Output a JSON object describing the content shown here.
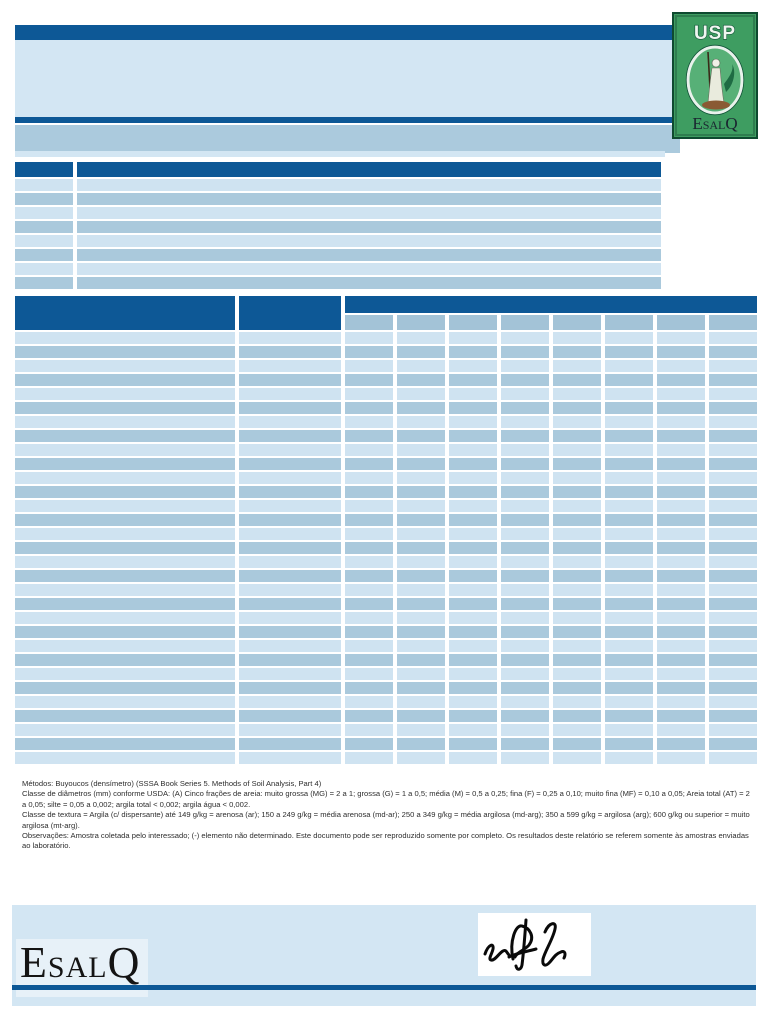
{
  "colors": {
    "dark_blue": "#0D5896",
    "light_blue": "#D3E6F3",
    "row_light": "#CFE3F1",
    "row_medium": "#AAC9DC",
    "subheader_blue": "#A3C3D7",
    "logo_green": "#3E9D61",
    "logo_border_green": "#0E4A30"
  },
  "logo": {
    "org": "USP"
  },
  "wordmark": {
    "first": "E",
    "middle": "SAL",
    "last": "Q"
  },
  "info_table": {
    "row_count": 8,
    "column_count": 2
  },
  "main_table": {
    "row_count": 31,
    "subcolumn_count": 8
  },
  "notes": {
    "methods": "Métodos: Buyoucos (densímetro) (SSSA Book Series 5. Methods of Soil Analysis, Part 4)",
    "diameters": "Classe de diâmetros (mm) conforme USDA: (A) Cinco frações de areia: muito grossa (MG) = 2 a 1; grossa (G) = 1 a 0,5; média (M) = 0,5 a 0,25; fina (F) = 0,25 a 0,10; muito fina (MF) = 0,10 a 0,05; Areia total (AT) = 2 a 0,05; silte = 0,05 a 0,002; argila total < 0,002; argila água < 0,002.",
    "texture": "Classe de textura = Argila (c/ dispersante) até 149 g/kg = arenosa (ar); 150 a 249 g/kg = média arenosa (md-ar); 250 a 349 g/kg = média argilosa (md-arg); 350 a 599 g/kg = argilosa (arg); 600 g/kg ou superior = muito argilosa (mt-arg).",
    "observations": "Observações: Amostra coletada pelo interessado; (-) elemento não determinado. Este documento pode ser reproduzido somente por completo. Os resultados deste relatório se referem somente às amostras enviadas ao laboratório."
  }
}
